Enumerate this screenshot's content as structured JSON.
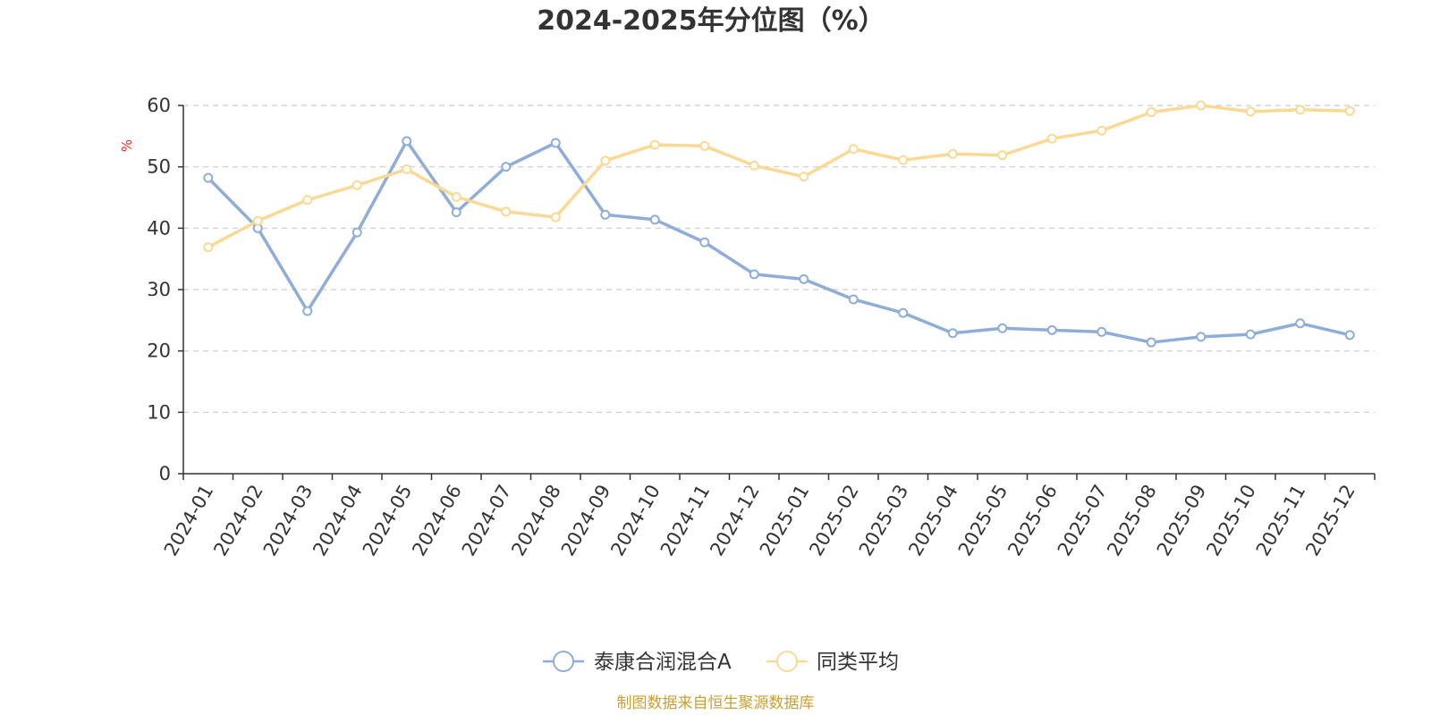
{
  "chart_data": {
    "type": "line",
    "title": "2024-2025年分位图（%）",
    "y_unit": "%",
    "ylim": [
      0,
      60
    ],
    "y_ticks": [
      0,
      10,
      20,
      30,
      40,
      50,
      60
    ],
    "grid": true,
    "legend_position": "bottom-center",
    "categories": [
      "2024-01",
      "2024-02",
      "2024-03",
      "2024-04",
      "2024-05",
      "2024-06",
      "2024-07",
      "2024-08",
      "2024-09",
      "2024-10",
      "2024-11",
      "2024-12",
      "2025-01",
      "2025-02",
      "2025-03",
      "2025-04",
      "2025-05",
      "2025-06",
      "2025-07",
      "2025-08",
      "2025-09",
      "2025-10",
      "2025-11",
      "2025-12"
    ],
    "series": [
      {
        "name": "泰康合润混合A",
        "color": "#8eadd8",
        "values": [
          48.2,
          40.0,
          26.5,
          39.3,
          54.2,
          42.6,
          50.0,
          53.9,
          42.2,
          41.4,
          37.7,
          32.5,
          31.7,
          28.4,
          26.2,
          22.9,
          23.7,
          23.4,
          23.1,
          21.4,
          22.3,
          22.7,
          24.5,
          22.6
        ]
      },
      {
        "name": "同类平均",
        "color": "#fbd994",
        "values": [
          36.9,
          41.2,
          44.6,
          47.0,
          49.6,
          45.1,
          42.7,
          41.8,
          51.0,
          53.6,
          53.4,
          50.2,
          48.4,
          52.9,
          51.1,
          52.1,
          51.9,
          54.6,
          55.9,
          58.9,
          60.0,
          59.0,
          59.3,
          59.1
        ]
      }
    ],
    "source_text": "制图数据来自恒生聚源数据库",
    "source_color": "#c9a033",
    "unit_color": "#e8281e",
    "grid_color": "#cccccc",
    "axis_color": "#333333"
  }
}
